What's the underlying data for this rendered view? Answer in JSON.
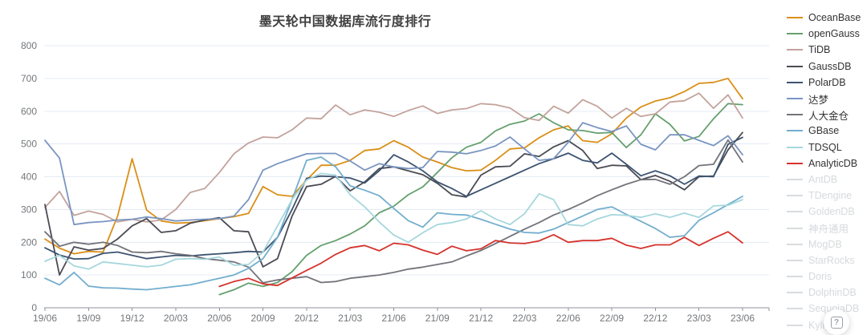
{
  "title": "墨天轮中国数据库流行度排行",
  "help_button": {
    "label": "?"
  },
  "colors": {
    "grid": "#e4ebf5",
    "axis": "#909399",
    "tick_text": "#73767a",
    "disabled_legend": "#d6d9dc"
  },
  "chart_data": {
    "type": "line",
    "title": "墨天轮中国数据库流行度排行",
    "xlabel": "",
    "ylabel": "",
    "ylim": [
      0,
      800
    ],
    "y_ticks": [
      0,
      100,
      200,
      300,
      400,
      500,
      600,
      700,
      800
    ],
    "grid": true,
    "legend_position": "right",
    "x_tick_every": 3,
    "categories": [
      "19/06",
      "19/07",
      "19/08",
      "19/09",
      "19/10",
      "19/11",
      "19/12",
      "20/01",
      "20/02",
      "20/03",
      "20/04",
      "20/05",
      "20/06",
      "20/07",
      "20/08",
      "20/09",
      "20/10",
      "20/11",
      "20/12",
      "21/01",
      "21/02",
      "21/03",
      "21/04",
      "21/05",
      "21/06",
      "21/07",
      "21/08",
      "21/09",
      "21/10",
      "21/11",
      "21/12",
      "22/01",
      "22/02",
      "22/03",
      "22/04",
      "22/05",
      "22/06",
      "22/07",
      "22/08",
      "22/09",
      "22/10",
      "22/11",
      "22/12",
      "23/01",
      "23/02",
      "23/03",
      "23/04",
      "23/05",
      "23/06"
    ],
    "axis_tick_labels": [
      "19/06",
      "19/09",
      "19/12",
      "20/03",
      "20/06",
      "20/09",
      "20/12",
      "21/03",
      "21/06",
      "21/09",
      "21/12",
      "22/03",
      "22/06",
      "22/09",
      "22/12",
      "23/03",
      "23/06"
    ],
    "series": [
      {
        "name": "OceanBase",
        "color": "#da8f17",
        "active": true,
        "values": [
          210,
          182,
          165,
          172,
          170,
          280,
          455,
          298,
          265,
          258,
          260,
          266,
          272,
          278,
          288,
          370,
          345,
          340,
          390,
          435,
          435,
          450,
          480,
          485,
          510,
          490,
          460,
          445,
          428,
          418,
          420,
          450,
          485,
          488,
          519,
          543,
          555,
          510,
          505,
          531,
          579,
          613,
          631,
          641,
          660,
          685,
          688,
          700,
          638
        ]
      },
      {
        "name": "openGauss",
        "color": "#66a06e",
        "active": true,
        "values": [
          null,
          null,
          null,
          null,
          null,
          null,
          null,
          null,
          null,
          null,
          null,
          null,
          40,
          55,
          75,
          65,
          77,
          110,
          160,
          190,
          205,
          225,
          250,
          290,
          310,
          345,
          369,
          413,
          458,
          490,
          505,
          540,
          560,
          570,
          592,
          565,
          543,
          541,
          533,
          535,
          489,
          528,
          592,
          560,
          509,
          523,
          577,
          623,
          620
        ]
      },
      {
        "name": "TiDB",
        "color": "#c3a39c",
        "active": true,
        "values": [
          306,
          355,
          282,
          295,
          285,
          262,
          270,
          262,
          268,
          300,
          352,
          364,
          413,
          470,
          503,
          521,
          519,
          543,
          579,
          577,
          619,
          589,
          604,
          597,
          584,
          602,
          616,
          593,
          604,
          608,
          623,
          620,
          610,
          580,
          572,
          615,
          594,
          635,
          615,
          579,
          609,
          584,
          592,
          628,
          632,
          655,
          609,
          650,
          579
        ]
      },
      {
        "name": "GaussDB",
        "color": "#4b4b54",
        "active": true,
        "values": [
          315,
          100,
          186,
          176,
          181,
          210,
          250,
          272,
          230,
          235,
          258,
          268,
          275,
          235,
          232,
          125,
          150,
          280,
          370,
          377,
          401,
          357,
          384,
          425,
          430,
          418,
          406,
          380,
          345,
          338,
          405,
          430,
          432,
          470,
          462,
          491,
          510,
          480,
          425,
          435,
          433,
          391,
          404,
          386,
          360,
          400,
          402,
          482,
          535
        ]
      },
      {
        "name": "PolarDB",
        "color": "#3c536f",
        "active": true,
        "values": [
          183,
          161,
          149,
          150,
          166,
          170,
          160,
          150,
          155,
          160,
          158,
          162,
          165,
          168,
          172,
          170,
          215,
          300,
          395,
          402,
          400,
          396,
          381,
          418,
          467,
          445,
          418,
          384,
          364,
          340,
          360,
          380,
          400,
          420,
          440,
          455,
          472,
          450,
          442,
          472,
          438,
          403,
          418,
          403,
          377,
          402,
          400,
          499,
          520
        ]
      },
      {
        "name": "达梦",
        "color": "#7a95c2",
        "active": true,
        "values": [
          511,
          457,
          254,
          260,
          263,
          268,
          270,
          277,
          272,
          265,
          268,
          270,
          272,
          280,
          330,
          420,
          440,
          455,
          470,
          471,
          471,
          448,
          420,
          440,
          430,
          425,
          428,
          477,
          475,
          470,
          480,
          494,
          521,
          485,
          450,
          455,
          505,
          565,
          550,
          538,
          555,
          499,
          482,
          528,
          528,
          511,
          495,
          525,
          467
        ]
      },
      {
        "name": "人大金仓",
        "color": "#73737b",
        "active": true,
        "values": [
          232,
          188,
          200,
          194,
          200,
          190,
          170,
          168,
          172,
          165,
          160,
          150,
          145,
          140,
          124,
          76,
          85,
          90,
          95,
          77,
          80,
          90,
          95,
          100,
          108,
          118,
          124,
          132,
          140,
          158,
          175,
          196,
          218,
          240,
          260,
          283,
          300,
          320,
          342,
          360,
          377,
          391,
          392,
          377,
          400,
          434,
          438,
          512,
          445
        ]
      },
      {
        "name": "GBase",
        "color": "#72aecd",
        "active": true,
        "values": [
          90,
          70,
          108,
          66,
          61,
          60,
          57,
          55,
          60,
          65,
          70,
          80,
          90,
          100,
          120,
          150,
          215,
          330,
          450,
          460,
          430,
          372,
          359,
          342,
          303,
          266,
          246,
          290,
          285,
          283,
          270,
          255,
          240,
          230,
          228,
          240,
          260,
          280,
          300,
          308,
          285,
          264,
          242,
          215,
          220,
          267,
          290,
          315,
          340
        ]
      },
      {
        "name": "TDSQL",
        "color": "#a6d7dd",
        "active": true,
        "values": [
          142,
          160,
          128,
          118,
          140,
          135,
          130,
          125,
          130,
          148,
          150,
          148,
          155,
          130,
          132,
          170,
          250,
          330,
          390,
          410,
          405,
          345,
          308,
          262,
          222,
          200,
          229,
          254,
          260,
          271,
          296,
          271,
          254,
          287,
          348,
          330,
          254,
          250,
          271,
          284,
          282,
          276,
          287,
          276,
          289,
          276,
          311,
          313,
          330
        ]
      },
      {
        "name": "AnalyticDB",
        "color": "#d5332c",
        "active": true,
        "values": [
          null,
          null,
          null,
          null,
          null,
          null,
          null,
          null,
          null,
          null,
          null,
          null,
          65,
          80,
          90,
          73,
          68,
          91,
          114,
          136,
          163,
          183,
          190,
          174,
          197,
          192,
          176,
          163,
          188,
          174,
          180,
          205,
          198,
          196,
          204,
          223,
          200,
          205,
          205,
          212,
          191,
          181,
          192,
          192,
          215,
          190,
          212,
          232,
          198
        ]
      },
      {
        "name": "AntDB",
        "color": "#d9dcde",
        "active": false,
        "values": null
      },
      {
        "name": "TDengine",
        "color": "#d9dcde",
        "active": false,
        "values": null
      },
      {
        "name": "GoldenDB",
        "color": "#d9dcde",
        "active": false,
        "values": null
      },
      {
        "name": "神舟通用",
        "color": "#d9dcde",
        "active": false,
        "values": null
      },
      {
        "name": "MogDB",
        "color": "#d9dcde",
        "active": false,
        "values": null
      },
      {
        "name": "StarRocks",
        "color": "#d9dcde",
        "active": false,
        "values": null
      },
      {
        "name": "Doris",
        "color": "#d9dcde",
        "active": false,
        "values": null
      },
      {
        "name": "DolphinDB",
        "color": "#d9dcde",
        "active": false,
        "values": null
      },
      {
        "name": "SequoiaDB",
        "color": "#d9dcde",
        "active": false,
        "values": null
      },
      {
        "name": "Kylige",
        "color": "#d9dcde",
        "active": false,
        "values": null
      }
    ]
  }
}
